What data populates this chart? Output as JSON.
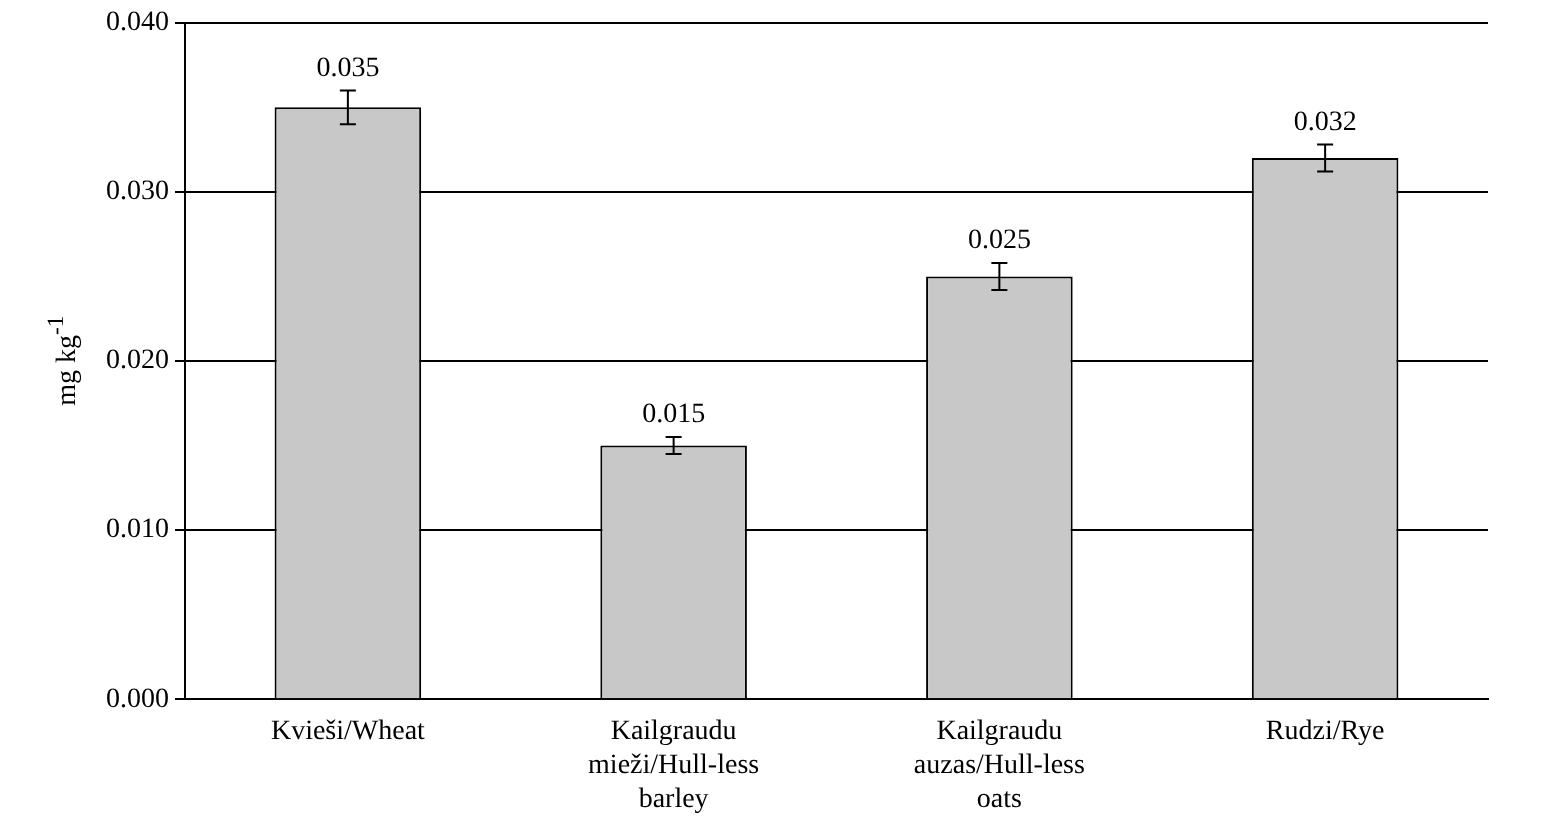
{
  "chart_data": {
    "type": "bar",
    "ylabel": "mg kg$^{-1}$",
    "categories": [
      "Kvieši/Wheat",
      "Kailgraudu mieži/Hull-less barley",
      "Kailgraudu auzas/Hull-less oats",
      "Rudzi/Rye"
    ],
    "values": [
      0.035,
      0.015,
      0.025,
      0.032
    ],
    "errors": [
      0.001,
      0.0005,
      0.0008,
      0.0008
    ],
    "color": "#c8c8c8",
    "ylim": [
      0,
      0.04
    ],
    "yticks": [
      {
        "value": 0,
        "label": "0.000"
      },
      {
        "value": 0.01,
        "label": "0.010"
      },
      {
        "value": 0.02,
        "label": "0.020"
      },
      {
        "value": 0.03,
        "label": "0.030"
      },
      {
        "value": 0.04,
        "label": "0.040"
      }
    ],
    "grid": "y",
    "legend": false,
    "data_labels": true
  }
}
